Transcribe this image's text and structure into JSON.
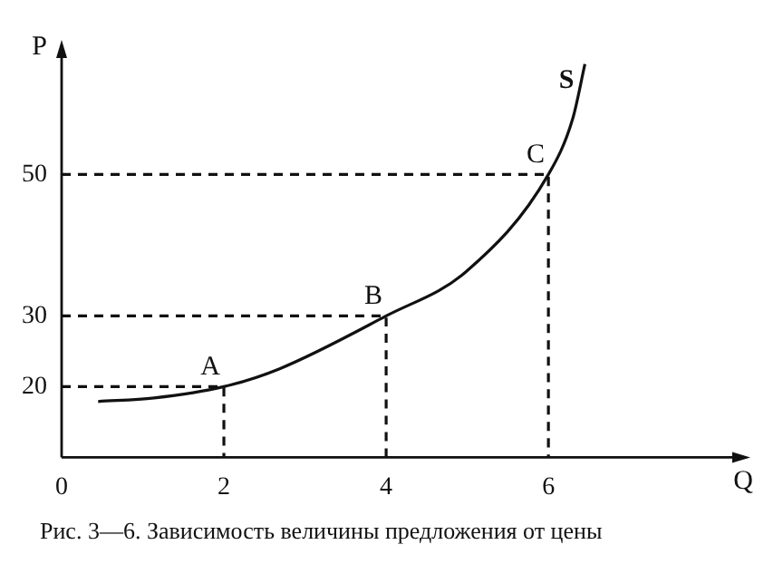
{
  "chart_data": {
    "type": "line",
    "xlabel": "Q",
    "ylabel": "P",
    "xlim": [
      0,
      8.4
    ],
    "ylim": [
      10,
      68
    ],
    "xticks": [
      0,
      2,
      4,
      6
    ],
    "yticks": [
      20,
      30,
      50
    ],
    "grid": false,
    "legend": false,
    "marker": "none",
    "series": [
      {
        "name": "S",
        "color": "#111111",
        "line_style": "solid",
        "x": [
          0.45,
          1.14,
          2,
          2.68,
          4,
          4.99,
          6,
          6.3,
          6.45
        ],
        "values": [
          17.9,
          18.4,
          20,
          22.5,
          30,
          36.3,
          50,
          57.9,
          65.6
        ]
      },
      {
        "color": "#111111",
        "line_style": "dashed",
        "x": [
          0,
          2,
          2
        ],
        "values": [
          20,
          20,
          10
        ]
      },
      {
        "color": "#111111",
        "line_style": "dashed",
        "x": [
          0,
          4,
          4
        ],
        "values": [
          30,
          30,
          10
        ]
      },
      {
        "color": "#111111",
        "line_style": "dashed",
        "x": [
          0,
          6,
          6
        ],
        "values": [
          50,
          50,
          10
        ]
      }
    ],
    "annotations": [
      {
        "text": "A",
        "x": 2,
        "y": 20
      },
      {
        "text": "B",
        "x": 4,
        "y": 30
      },
      {
        "text": "C",
        "x": 6,
        "y": 50
      },
      "Рис. 3—6. Зависимость величины предложения от цены"
    ]
  }
}
